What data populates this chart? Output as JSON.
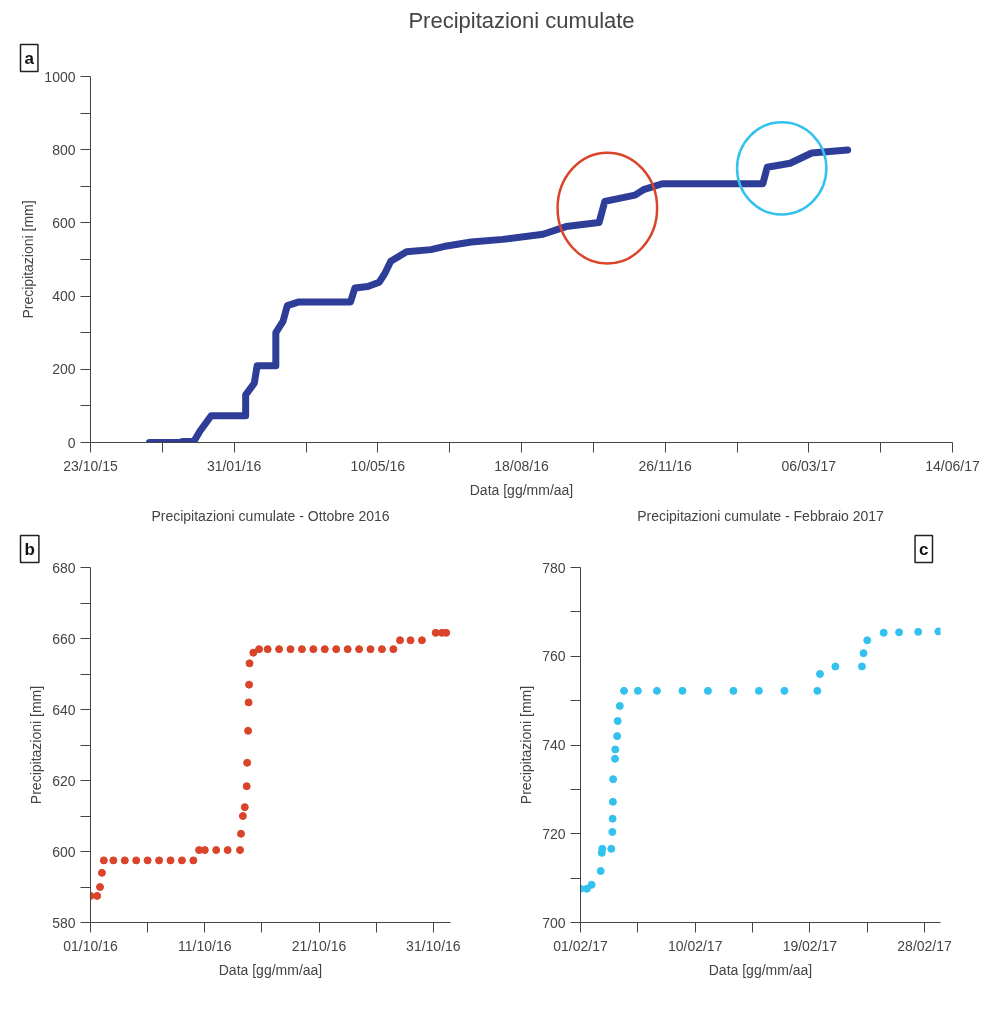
{
  "chart_data": [
    {
      "type": "line",
      "title": "Precipitazioni cumulate",
      "xlabel": "Data [gg/mm/aa]",
      "ylabel": "Precipitazioni [mm]",
      "annotations": [
        "a"
      ],
      "x": [
        "2015-12-03",
        "2015-12-24",
        "2015-12-26",
        "2016-01-03",
        "2016-01-07",
        "2016-01-15",
        "2016-02-08",
        "2016-02-08",
        "2016-02-14",
        "2016-02-16",
        "2016-02-29",
        "2016-02-29",
        "2016-03-05",
        "2016-03-08",
        "2016-03-16",
        "2016-04-21",
        "2016-04-24",
        "2016-05-03",
        "2016-05-11",
        "2016-05-15",
        "2016-05-19",
        "2016-05-30",
        "2016-06-16",
        "2016-06-27",
        "2016-07-14",
        "2016-08-05",
        "2016-09-02",
        "2016-09-18",
        "2016-10-11",
        "2016-10-15",
        "2016-11-05",
        "2016-11-11",
        "2016-11-24",
        "2017-02-02",
        "2017-02-05",
        "2017-02-21",
        "2017-03-08",
        "2017-04-02"
      ],
      "series": [
        {
          "color": "#2e3d98",
          "values": [
            0,
            0,
            3,
            3,
            30,
            73,
            73,
            130,
            162,
            210,
            210,
            300,
            331,
            374,
            384,
            384,
            422,
            426,
            438,
            463,
            495,
            521,
            527,
            537,
            548,
            555,
            569,
            590,
            601,
            659,
            676,
            691,
            707,
            707,
            752,
            763,
            791,
            799
          ]
        }
      ],
      "xlim": [
        "2015-10-23",
        "2017-06-14"
      ],
      "xticks": [
        {
          "value": "2015-10-23",
          "label": "23/10/15"
        },
        {
          "value": "2015-12-12",
          "label": null
        },
        {
          "value": "2016-01-31",
          "label": "31/01/16"
        },
        {
          "value": "2016-03-21",
          "label": null
        },
        {
          "value": "2016-05-10",
          "label": "10/05/16"
        },
        {
          "value": "2016-06-29",
          "label": null
        },
        {
          "value": "2016-08-18",
          "label": "18/08/16"
        },
        {
          "value": "2016-10-07",
          "label": null
        },
        {
          "value": "2016-11-26",
          "label": "26/11/16"
        },
        {
          "value": "2017-01-15",
          "label": null
        },
        {
          "value": "2017-03-06",
          "label": "06/03/17"
        },
        {
          "value": "2017-04-25",
          "label": null
        },
        {
          "value": "2017-06-14",
          "label": "14/06/17"
        }
      ],
      "ylim": [
        0,
        1000
      ],
      "yticks": [
        0,
        {
          "value": 100,
          "label": null
        },
        200,
        {
          "value": 300,
          "label": null
        },
        400,
        {
          "value": 500,
          "label": null
        },
        600,
        {
          "value": 700,
          "label": null
        },
        800,
        {
          "value": 900,
          "label": null
        },
        1000
      ]
    },
    {
      "type": "scatter",
      "title": "Precipitazioni cumulate - Ottobre 2016",
      "xlabel": "Data [gg/mm/aa]",
      "ylabel": "Precipitazioni [mm]",
      "annotations": [
        "b"
      ],
      "marker": "circle",
      "x": [
        "2016-10-01T00:00",
        "2016-10-01T14:00",
        "2016-10-01T20:00",
        "2016-10-02T00:00",
        "2016-10-02T04:00",
        "2016-10-03T00:00",
        "2016-10-04T00:00",
        "2016-10-05T00:00",
        "2016-10-06T00:00",
        "2016-10-07T00:00",
        "2016-10-08T00:00",
        "2016-10-09T00:00",
        "2016-10-10T00:00",
        "2016-10-10T12:00",
        "2016-10-11T00:00",
        "2016-10-12T00:00",
        "2016-10-13T00:00",
        "2016-10-14T02:00",
        "2016-10-14T04:00",
        "2016-10-14T08:00",
        "2016-10-14T12:00",
        "2016-10-14T16:00",
        "2016-10-14T17:00",
        "2016-10-14T19:00",
        "2016-10-14T20:00",
        "2016-10-14T21:00",
        "2016-10-14T22:00",
        "2016-10-15T06:00",
        "2016-10-15T18:00",
        "2016-10-16T12:00",
        "2016-10-17T12:00",
        "2016-10-18T12:00",
        "2016-10-19T12:00",
        "2016-10-20T12:00",
        "2016-10-21T12:00",
        "2016-10-22T12:00",
        "2016-10-23T12:00",
        "2016-10-24T12:00",
        "2016-10-25T12:00",
        "2016-10-26T12:00",
        "2016-10-27T12:00",
        "2016-10-28T02:00",
        "2016-10-29T00:00",
        "2016-10-30T00:00",
        "2016-10-31T05:00",
        "2016-10-31T18:00",
        "2016-11-01T03:00"
      ],
      "series": [
        {
          "color": "#d9442a",
          "values": [
            587.5,
            587.5,
            590,
            594,
            597.5,
            597.5,
            597.5,
            597.5,
            597.5,
            597.5,
            597.5,
            597.5,
            597.5,
            600.4,
            600.4,
            600.4,
            600.4,
            600.4,
            605,
            610,
            612.5,
            618.4,
            625,
            634,
            642,
            647,
            653,
            656,
            657,
            657,
            657,
            657,
            657,
            657,
            657,
            657,
            657,
            657,
            657,
            657,
            657,
            659.5,
            659.5,
            659.5,
            661.6,
            661.6,
            661.6
          ]
        }
      ],
      "xlim": [
        "2016-10-01",
        "2016-11-01T12:00"
      ],
      "xticks": [
        {
          "value": "2016-10-01",
          "label": "01/10/16"
        },
        {
          "value": "2016-10-06",
          "label": null
        },
        {
          "value": "2016-10-11",
          "label": "11/10/16"
        },
        {
          "value": "2016-10-16",
          "label": null
        },
        {
          "value": "2016-10-21",
          "label": "21/10/16"
        },
        {
          "value": "2016-10-26",
          "label": null
        },
        {
          "value": "2016-10-31",
          "label": "31/10/16"
        }
      ],
      "ylim": [
        580,
        680
      ],
      "yticks": [
        580,
        {
          "value": 590,
          "label": null
        },
        600,
        {
          "value": 610,
          "label": null
        },
        620,
        {
          "value": 630,
          "label": null
        },
        640,
        {
          "value": 650,
          "label": null
        },
        660,
        {
          "value": 670,
          "label": null
        },
        680
      ]
    },
    {
      "type": "scatter",
      "title": "Precipitazioni cumulate - Febbraio 2017",
      "xlabel": "Data [gg/mm/aa]",
      "ylabel": "Precipitazioni [mm]",
      "annotations": [
        "c"
      ],
      "marker": "circle",
      "x": [
        "2017-02-01T00:00",
        "2017-02-01T12:00",
        "2017-02-01T21:00",
        "2017-02-02T14:00",
        "2017-02-02T16:00",
        "2017-02-02T17:00",
        "2017-02-03T10:00",
        "2017-02-03T12:00",
        "2017-02-03T12:30",
        "2017-02-03T13:00",
        "2017-02-03T13:30",
        "2017-02-03T17:00",
        "2017-02-03T17:30",
        "2017-02-03T21:00",
        "2017-02-03T22:00",
        "2017-02-04T02:00",
        "2017-02-04T10:00",
        "2017-02-05T12:00",
        "2017-02-07T00:00",
        "2017-02-09T00:00",
        "2017-02-11T00:00",
        "2017-02-13T00:00",
        "2017-02-15T00:00",
        "2017-02-17T00:00",
        "2017-02-19T14:00",
        "2017-02-19T19:00",
        "2017-02-21T00:00",
        "2017-02-23T02:00",
        "2017-02-23T05:00",
        "2017-02-23T12:00",
        "2017-02-24T19:00",
        "2017-02-26T00:00",
        "2017-02-27T12:00",
        "2017-03-01T02:00"
      ],
      "series": [
        {
          "color": "#33c1ee",
          "values": [
            707.6,
            707.6,
            708.5,
            711.6,
            715.7,
            716.6,
            716.6,
            720.4,
            723.4,
            727.2,
            732.3,
            736.9,
            739,
            742,
            745.4,
            748.8,
            752.2,
            752.2,
            752.2,
            752.2,
            752.2,
            752.2,
            752.2,
            752.2,
            752.2,
            756,
            757.7,
            757.7,
            760.7,
            763.6,
            765.3,
            765.4,
            765.5,
            765.6
          ]
        }
      ],
      "xlim": [
        "2017-02-01",
        "2017-03-01T06:00"
      ],
      "xticks": [
        {
          "value": "2017-02-01",
          "label": "01/02/17"
        },
        {
          "value": "2017-02-05T12:00",
          "label": null
        },
        {
          "value": "2017-02-10",
          "label": "10/02/17"
        },
        {
          "value": "2017-02-14T12:00",
          "label": null
        },
        {
          "value": "2017-02-19",
          "label": "19/02/17"
        },
        {
          "value": "2017-02-23T12:00",
          "label": null
        },
        {
          "value": "2017-02-28",
          "label": "28/02/17"
        }
      ],
      "ylim": [
        700,
        780
      ],
      "yticks": [
        700,
        {
          "value": 710,
          "label": null
        },
        720,
        {
          "value": 730,
          "label": null
        },
        740,
        {
          "value": 750,
          "label": null
        },
        760,
        {
          "value": 770,
          "label": null
        },
        780
      ]
    }
  ]
}
